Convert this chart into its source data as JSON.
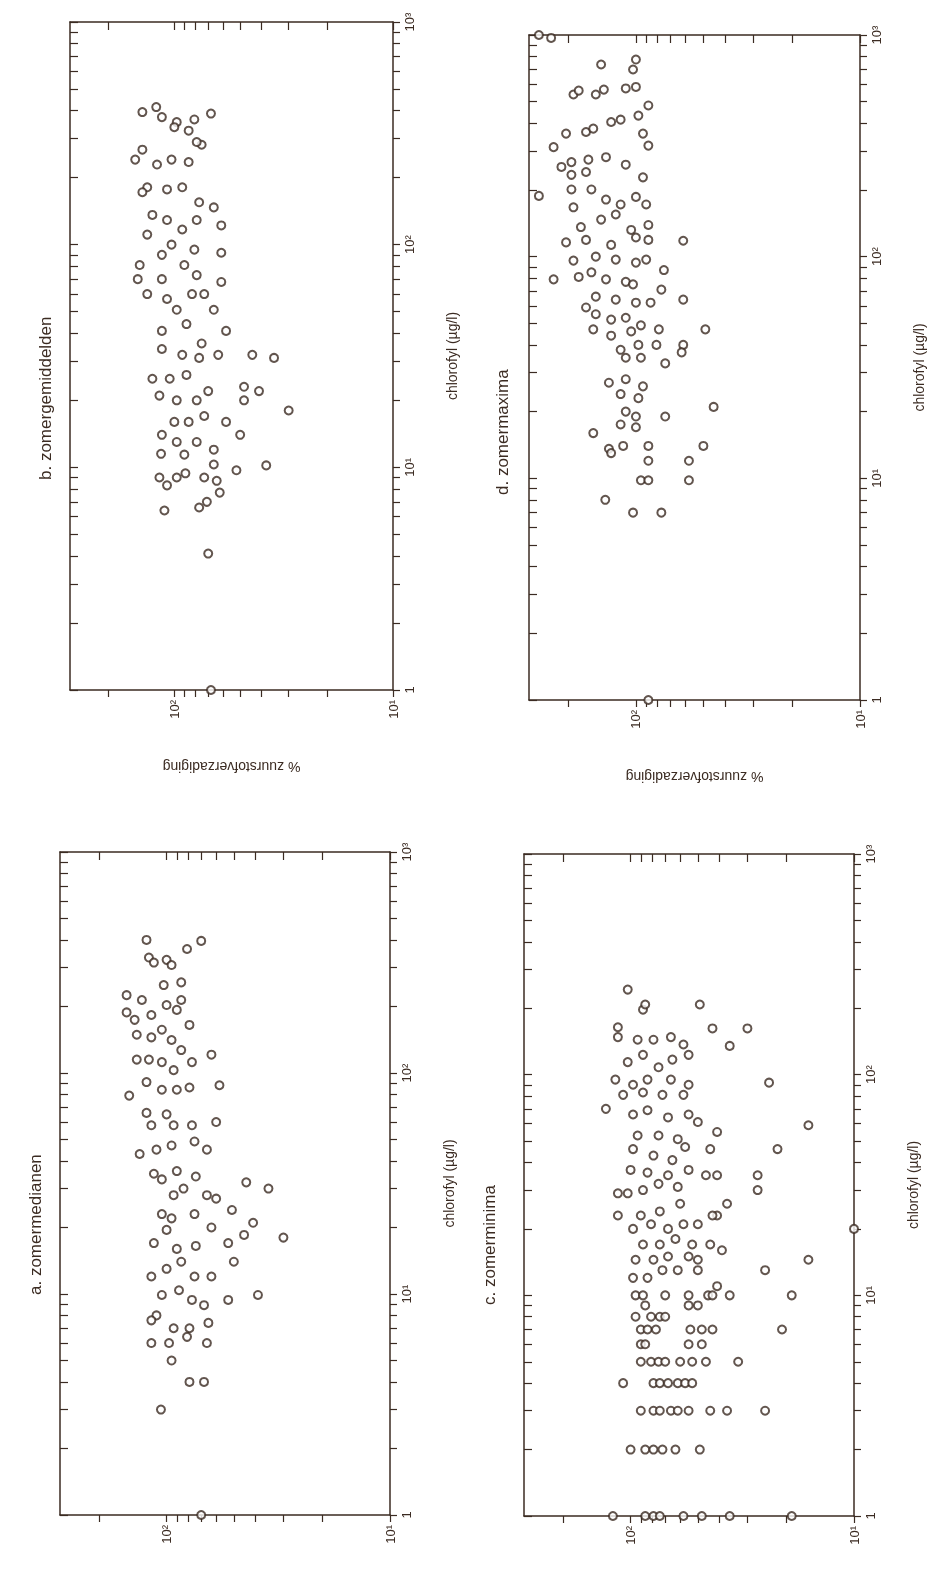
{
  "chart_data": [
    {
      "type": "scatter",
      "title": "b. zomergemiddelden",
      "xlabel": "% zuurstofverzadiging",
      "ylabel": "chlorofyl (µg/l)",
      "color": "#3b2b22",
      "marker": "circle",
      "log": "xy",
      "xlim": [
        300,
        10
      ],
      "ylim": [
        1,
        1000
      ],
      "yticks": [
        {
          "value": 1,
          "label": "1"
        },
        {
          "value": 2,
          "label": null
        },
        {
          "value": 3,
          "label": null
        },
        {
          "value": 4,
          "label": null
        },
        {
          "value": 5,
          "label": null
        },
        {
          "value": 6,
          "label": null
        },
        {
          "value": 7,
          "label": null
        },
        {
          "value": 8,
          "label": null
        },
        {
          "value": 9,
          "label": null
        },
        {
          "value": 10,
          "label": "10¹"
        },
        {
          "value": 20,
          "label": null
        },
        {
          "value": 30,
          "label": null
        },
        {
          "value": 40,
          "label": null
        },
        {
          "value": 50,
          "label": null
        },
        {
          "value": 60,
          "label": null
        },
        {
          "value": 70,
          "label": null
        },
        {
          "value": 80,
          "label": null
        },
        {
          "value": 90,
          "label": null
        },
        {
          "value": 100,
          "label": "10²"
        },
        {
          "value": 200,
          "label": null
        },
        {
          "value": 300,
          "label": null
        },
        {
          "value": 400,
          "label": null
        },
        {
          "value": 500,
          "label": null
        },
        {
          "value": 600,
          "label": null
        },
        {
          "value": 700,
          "label": null
        },
        {
          "value": 800,
          "label": null
        },
        {
          "value": 900,
          "label": null
        },
        {
          "value": 1000,
          "label": "10³"
        }
      ],
      "xticks": [
        {
          "value": 10,
          "label": "10¹"
        },
        {
          "value": 20,
          "label": null
        },
        {
          "value": 30,
          "label": null
        },
        {
          "value": 40,
          "label": null
        },
        {
          "value": 50,
          "label": null
        },
        {
          "value": 60,
          "label": null
        },
        {
          "value": 70,
          "label": null
        },
        {
          "value": 80,
          "label": null
        },
        {
          "value": 90,
          "label": null
        },
        {
          "value": 100,
          "label": "10²"
        },
        {
          "value": 200,
          "label": null
        }
      ],
      "values": [
        415,
        394,
        388,
        374,
        355,
        337,
        325,
        365,
        281,
        289,
        241,
        267,
        229,
        241,
        235,
        181,
        172,
        177,
        181,
        155,
        147,
        136,
        129,
        117,
        129,
        122,
        111,
        100,
        95,
        92,
        81,
        90,
        70,
        70,
        81,
        73,
        68,
        60,
        57,
        60,
        60,
        51,
        51,
        41,
        44,
        36,
        41,
        34,
        32,
        31,
        32,
        32,
        31,
        25,
        25,
        26,
        22,
        23,
        22,
        21,
        20,
        20,
        20,
        18,
        16,
        16,
        17,
        16,
        14,
        14,
        13,
        13,
        12,
        11.5,
        11.4,
        10.3,
        9.7,
        10.2,
        9.0,
        9.0,
        9.4,
        9.0,
        8.7,
        8.3,
        7.7,
        6.4,
        6.6,
        7.0,
        4.1,
        1
      ],
      "x": [
        121,
        140,
        68,
        114,
        97.5,
        100,
        86,
        81,
        75,
        79,
        151,
        140,
        120,
        103,
        86,
        133,
        140,
        108,
        92,
        77,
        66,
        126,
        108,
        92,
        79,
        61,
        133,
        103,
        81,
        61,
        144,
        114,
        147,
        114,
        90,
        79,
        61,
        133,
        108,
        83,
        73,
        97.5,
        66,
        114,
        88,
        75,
        58,
        114,
        92,
        77,
        63,
        44,
        35,
        126,
        105,
        88,
        70,
        48,
        41,
        117,
        97.5,
        79,
        48,
        30,
        100,
        86,
        73,
        58,
        50,
        114,
        97.5,
        79,
        66,
        115,
        90,
        66,
        52,
        38,
        117,
        97.5,
        89,
        73,
        64,
        108,
        62,
        111,
        77,
        71,
        70,
        68
      ]
    },
    {
      "type": "scatter",
      "title": "d. zomermaxima",
      "xlabel": "% zuurstofverzadiging",
      "ylabel": "chlorofyl (µg/l)",
      "color": "#3b2b22",
      "marker": "circle",
      "log": "xy",
      "xlim": [
        300,
        10
      ],
      "ylim": [
        1,
        1000
      ],
      "yticks": [
        {
          "value": 1,
          "label": "1"
        },
        {
          "value": 2,
          "label": null
        },
        {
          "value": 3,
          "label": null
        },
        {
          "value": 4,
          "label": null
        },
        {
          "value": 5,
          "label": null
        },
        {
          "value": 6,
          "label": null
        },
        {
          "value": 7,
          "label": null
        },
        {
          "value": 8,
          "label": null
        },
        {
          "value": 9,
          "label": null
        },
        {
          "value": 10,
          "label": "10¹"
        },
        {
          "value": 20,
          "label": null
        },
        {
          "value": 30,
          "label": null
        },
        {
          "value": 40,
          "label": null
        },
        {
          "value": 50,
          "label": null
        },
        {
          "value": 60,
          "label": null
        },
        {
          "value": 70,
          "label": null
        },
        {
          "value": 80,
          "label": null
        },
        {
          "value": 90,
          "label": null
        },
        {
          "value": 100,
          "label": "10²"
        },
        {
          "value": 200,
          "label": null
        },
        {
          "value": 300,
          "label": null
        },
        {
          "value": 400,
          "label": null
        },
        {
          "value": 500,
          "label": null
        },
        {
          "value": 600,
          "label": null
        },
        {
          "value": 700,
          "label": null
        },
        {
          "value": 800,
          "label": null
        },
        {
          "value": 900,
          "label": null
        },
        {
          "value": 1000,
          "label": "10³"
        }
      ],
      "xticks": [
        {
          "value": 10,
          "label": "10¹"
        },
        {
          "value": 20,
          "label": null
        },
        {
          "value": 30,
          "label": null
        },
        {
          "value": 40,
          "label": null
        },
        {
          "value": 50,
          "label": null
        },
        {
          "value": 60,
          "label": null
        },
        {
          "value": 70,
          "label": null
        },
        {
          "value": 80,
          "label": null
        },
        {
          "value": 90,
          "label": null
        },
        {
          "value": 100,
          "label": "10²"
        },
        {
          "value": 200,
          "label": null
        }
      ],
      "values": [
        1000,
        970,
        188,
        736,
        775,
        699,
        539,
        561,
        539,
        567,
        574,
        583,
        481,
        433,
        365,
        359,
        378,
        405,
        415,
        359,
        317,
        312,
        254,
        267,
        274,
        281,
        260,
        228,
        234,
        241,
        201,
        201,
        181,
        172,
        186,
        172,
        167,
        136,
        147,
        155,
        132,
        139,
        116,
        119,
        113,
        122,
        119,
        118,
        96,
        100,
        97,
        94,
        97,
        79,
        81,
        85,
        79,
        77,
        75,
        87,
        66,
        64,
        62,
        62,
        71,
        64,
        59,
        55,
        52,
        53,
        49,
        47,
        44,
        46,
        47,
        47,
        38,
        40,
        40,
        40,
        35,
        35,
        33,
        37,
        27,
        28,
        26,
        24,
        23,
        20,
        19,
        19,
        21,
        17.5,
        17,
        16,
        13.6,
        13,
        14,
        14,
        14,
        12,
        12,
        9.8,
        9.8,
        9.8,
        8.0,
        7.0,
        7.0,
        1
      ],
      "x": [
        271,
        239,
        271,
        143,
        100,
        103,
        190,
        180,
        151,
        139,
        111,
        100,
        88,
        97.5,
        167,
        205,
        155,
        129,
        117,
        93,
        88,
        233,
        215,
        194,
        163,
        136,
        111,
        93,
        194,
        167,
        194,
        158,
        136,
        117,
        100,
        90,
        190,
        176,
        143,
        123,
        105,
        88,
        205,
        167,
        129,
        100,
        88,
        61.5,
        190,
        151,
        123,
        100,
        90,
        233,
        180,
        158,
        136,
        111,
        103,
        75,
        151,
        123,
        100,
        86,
        77,
        61.5,
        167,
        151,
        129,
        111,
        95,
        155,
        129,
        105,
        79,
        49,
        117,
        97.5,
        81,
        61.5,
        111,
        95,
        74,
        62.5,
        132,
        111,
        93,
        117,
        97.5,
        111,
        100,
        74,
        45,
        117,
        100,
        155,
        132,
        129,
        114,
        88,
        50,
        88,
        58,
        95,
        88,
        58,
        137,
        103,
        77,
        88
      ]
    },
    {
      "type": "scatter",
      "title": "a. zomermedianen",
      "ylabel": "chlorofyl (µg/l)",
      "color": "#3b2b22",
      "marker": "circle",
      "log": "xy",
      "xlim": [
        300,
        10
      ],
      "ylim": [
        1,
        1000
      ],
      "yticks": [
        {
          "value": 1,
          "label": "1"
        },
        {
          "value": 2,
          "label": null
        },
        {
          "value": 3,
          "label": null
        },
        {
          "value": 4,
          "label": null
        },
        {
          "value": 5,
          "label": null
        },
        {
          "value": 6,
          "label": null
        },
        {
          "value": 7,
          "label": null
        },
        {
          "value": 8,
          "label": null
        },
        {
          "value": 9,
          "label": null
        },
        {
          "value": 10,
          "label": "10¹"
        },
        {
          "value": 20,
          "label": null
        },
        {
          "value": 30,
          "label": null
        },
        {
          "value": 40,
          "label": null
        },
        {
          "value": 50,
          "label": null
        },
        {
          "value": 60,
          "label": null
        },
        {
          "value": 70,
          "label": null
        },
        {
          "value": 80,
          "label": null
        },
        {
          "value": 90,
          "label": null
        },
        {
          "value": 100,
          "label": "10²"
        },
        {
          "value": 200,
          "label": null
        },
        {
          "value": 300,
          "label": null
        },
        {
          "value": 400,
          "label": null
        },
        {
          "value": 500,
          "label": null
        },
        {
          "value": 600,
          "label": null
        },
        {
          "value": 700,
          "label": null
        },
        {
          "value": 800,
          "label": null
        },
        {
          "value": 900,
          "label": null
        },
        {
          "value": 1000,
          "label": "10³"
        }
      ],
      "xticks": [
        {
          "value": 10,
          "label": "10¹"
        },
        {
          "value": 20,
          "label": null
        },
        {
          "value": 30,
          "label": null
        },
        {
          "value": 40,
          "label": null
        },
        {
          "value": 50,
          "label": null
        },
        {
          "value": 60,
          "label": null
        },
        {
          "value": 70,
          "label": null
        },
        {
          "value": 80,
          "label": null
        },
        {
          "value": 90,
          "label": null
        },
        {
          "value": 100,
          "label": "10²"
        },
        {
          "value": 200,
          "label": null
        }
      ],
      "values": [
        400,
        396,
        364,
        333,
        316,
        325,
        308,
        250,
        257,
        214,
        225,
        214,
        188,
        174,
        183,
        203,
        193,
        165,
        149,
        145,
        157,
        141,
        127,
        121,
        115,
        115,
        112,
        103,
        112,
        91,
        79,
        84,
        84,
        86,
        88,
        66,
        65,
        58,
        58,
        58,
        60,
        43,
        45,
        47,
        49,
        45,
        35,
        33,
        36,
        34,
        32,
        30,
        28,
        30,
        28,
        27,
        23,
        22,
        23,
        24,
        17,
        19.5,
        16,
        16.5,
        20,
        17,
        21,
        18.5,
        18,
        12,
        13,
        14,
        12,
        12,
        14,
        9.9,
        10.4,
        9.4,
        8.9,
        9.4,
        9.9,
        8.0,
        7.6,
        7.0,
        7.0,
        7.4,
        6.0,
        6.0,
        6.4,
        6.0,
        5.0,
        4.0,
        4.0,
        3.0,
        1
      ],
      "x": [
        123,
        70,
        81,
        120,
        114,
        100,
        95,
        103,
        86,
        86,
        151,
        129,
        151,
        139,
        117,
        100,
        90,
        79,
        136,
        117,
        105,
        95,
        86,
        63,
        136,
        120,
        105,
        93,
        77,
        123,
        147,
        105,
        90,
        79,
        58,
        123,
        100,
        117,
        93,
        77,
        60,
        132,
        111,
        95,
        75,
        66,
        114,
        105,
        90,
        74,
        44,
        35,
        93,
        84,
        66,
        60,
        105,
        95,
        75,
        51,
        114,
        100,
        90,
        74,
        63,
        53,
        41,
        45,
        30,
        117,
        100,
        86,
        75,
        63,
        50,
        105,
        88,
        77,
        68,
        53,
        39,
        111,
        117,
        93,
        79,
        65,
        117,
        97.5,
        81,
        66,
        95,
        79,
        68,
        106,
        70
      ]
    },
    {
      "type": "scatter",
      "title": "c. zomerminima",
      "ylabel": "chlorofyl (µg/l)",
      "color": "#3b2b22",
      "marker": "circle",
      "log": "xy",
      "xlim": [
        300,
        10
      ],
      "ylim": [
        1,
        1000
      ],
      "yticks": [
        {
          "value": 1,
          "label": "1"
        },
        {
          "value": 2,
          "label": null
        },
        {
          "value": 3,
          "label": null
        },
        {
          "value": 4,
          "label": null
        },
        {
          "value": 5,
          "label": null
        },
        {
          "value": 6,
          "label": null
        },
        {
          "value": 7,
          "label": null
        },
        {
          "value": 8,
          "label": null
        },
        {
          "value": 9,
          "label": null
        },
        {
          "value": 10,
          "label": "10¹"
        },
        {
          "value": 20,
          "label": null
        },
        {
          "value": 30,
          "label": null
        },
        {
          "value": 40,
          "label": null
        },
        {
          "value": 50,
          "label": null
        },
        {
          "value": 60,
          "label": null
        },
        {
          "value": 70,
          "label": null
        },
        {
          "value": 80,
          "label": null
        },
        {
          "value": 90,
          "label": null
        },
        {
          "value": 100,
          "label": "10²"
        },
        {
          "value": 200,
          "label": null
        },
        {
          "value": 300,
          "label": null
        },
        {
          "value": 400,
          "label": null
        },
        {
          "value": 500,
          "label": null
        },
        {
          "value": 600,
          "label": null
        },
        {
          "value": 700,
          "label": null
        },
        {
          "value": 800,
          "label": null
        },
        {
          "value": 900,
          "label": null
        },
        {
          "value": 1000,
          "label": "10³"
        }
      ],
      "xticks": [
        {
          "value": 10,
          "label": "10¹"
        },
        {
          "value": 20,
          "label": null
        },
        {
          "value": 30,
          "label": null
        },
        {
          "value": 40,
          "label": null
        },
        {
          "value": 50,
          "label": null
        },
        {
          "value": 60,
          "label": null
        },
        {
          "value": 70,
          "label": null
        },
        {
          "value": 80,
          "label": null
        },
        {
          "value": 90,
          "label": null
        },
        {
          "value": 100,
          "label": "10²"
        },
        {
          "value": 200,
          "label": null
        }
      ],
      "values": [
        1,
        1,
        1,
        1,
        1,
        1,
        1,
        1,
        2,
        2,
        2,
        2,
        2,
        2,
        3,
        3,
        3,
        3,
        3,
        3,
        3,
        3,
        3,
        4,
        4,
        4,
        4,
        4,
        4,
        4,
        5,
        5,
        5,
        5,
        5,
        5,
        5,
        5,
        6,
        6,
        6,
        6,
        7,
        7,
        7,
        7,
        7,
        7,
        7,
        8,
        8,
        8,
        8,
        9,
        9,
        9,
        10,
        10,
        10,
        10,
        10,
        10,
        10,
        10,
        12,
        12,
        13,
        13,
        13,
        11,
        13,
        14.5,
        14.5,
        14.5,
        15,
        15,
        14.5,
        16,
        17,
        17,
        17,
        18,
        17,
        20,
        21,
        20,
        21,
        21,
        23,
        26,
        23,
        23,
        24,
        26,
        23,
        29,
        30,
        32,
        31,
        35,
        35,
        35,
        30,
        29,
        37,
        36,
        35,
        37,
        46,
        43,
        41,
        47,
        46,
        46,
        53,
        53,
        51,
        61,
        55,
        59,
        70,
        66,
        69,
        64,
        66,
        81,
        83,
        81,
        81,
        95,
        90,
        95,
        95,
        90,
        92,
        148,
        114,
        123,
        108,
        117,
        123,
        164,
        144,
        144,
        148,
        137,
        135,
        162,
        162,
        197,
        208,
        243,
        208,
        20
      ],
      "x": [
        120,
        86,
        79,
        74,
        58,
        48,
        36,
        19,
        100,
        86,
        79,
        72,
        63,
        49,
        90,
        79,
        74,
        66,
        61.5,
        55,
        44,
        37,
        25,
        108,
        79,
        74,
        68,
        61.5,
        57,
        53,
        90,
        81,
        75,
        70,
        60,
        53,
        46,
        33,
        90,
        86,
        55,
        48,
        90,
        84,
        77,
        54,
        48,
        43,
        21,
        95,
        81,
        74,
        70,
        86,
        55,
        50,
        95,
        88,
        70,
        55,
        45,
        43,
        36,
        19,
        97.5,
        84,
        72,
        61.5,
        50,
        41,
        25,
        16,
        95,
        79,
        68,
        55,
        50,
        39,
        44,
        88,
        74,
        63,
        53,
        97.5,
        81,
        68,
        58,
        50,
        41,
        37,
        114,
        90,
        74,
        60,
        43,
        103,
        88,
        75,
        61.5,
        46,
        41,
        27,
        27,
        114,
        100,
        84,
        68,
        55,
        97.5,
        79,
        65,
        57,
        44,
        22,
        93,
        75,
        61.5,
        50,
        41,
        16,
        129,
        97.5,
        84,
        68,
        55,
        108,
        88,
        72,
        58,
        117,
        97.5,
        84,
        66,
        55,
        24,
        114,
        103,
        88,
        75,
        65,
        55,
        114,
        93,
        79,
        66,
        58,
        36,
        43,
        30,
        88,
        49,
        103,
        86,
        10
      ]
    }
  ]
}
